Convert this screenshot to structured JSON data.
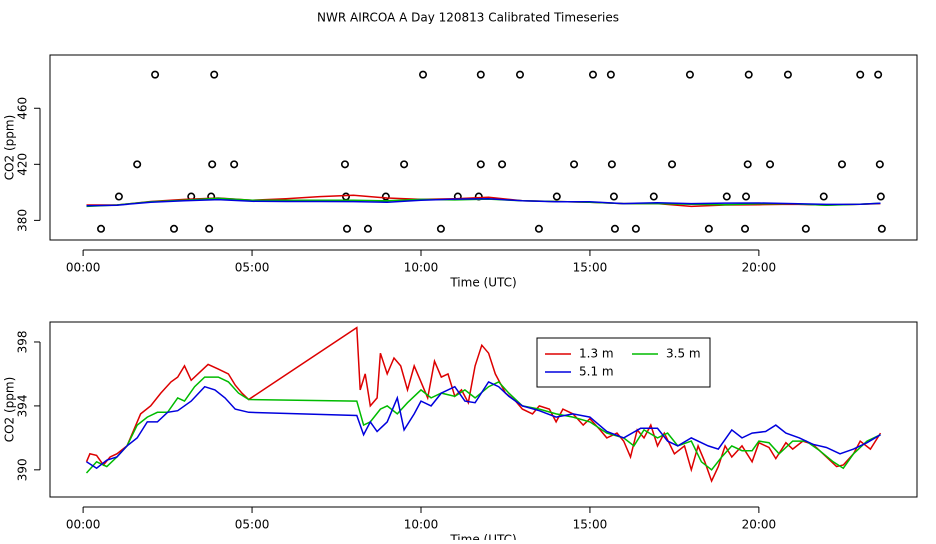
{
  "chart_data": [
    {
      "type": "line",
      "title": "NWR AIRCOA A  Day 120813  Calibrated Timeseries",
      "x_label": "Time (UTC)",
      "y_label": "CO2 (ppm)",
      "xlim": [
        -0.98,
        24.68
      ],
      "ylim": [
        366,
        498
      ],
      "xticks": [
        {
          "value": 0,
          "label": "00:00"
        },
        {
          "value": 5,
          "label": "05:00"
        },
        {
          "value": 10,
          "label": "10:00"
        },
        {
          "value": 15,
          "label": "15:00"
        },
        {
          "value": 20,
          "label": "20:00"
        }
      ],
      "yticks": [
        380,
        420,
        460
      ],
      "series": [
        {
          "mode": "points",
          "color": "#000000",
          "x": [
            2.13,
            3.88,
            10.06,
            11.77,
            12.93,
            15.09,
            15.62,
            17.96,
            19.7,
            20.86,
            23.0,
            23.53,
            1.6,
            3.82,
            4.47,
            7.75,
            9.5,
            11.77,
            12.4,
            14.53,
            15.65,
            17.43,
            19.67,
            20.33,
            22.46,
            23.58,
            1.06,
            3.2,
            3.79,
            7.78,
            8.96,
            11.09,
            11.71,
            14.02,
            15.71,
            16.89,
            19.05,
            19.62,
            21.92,
            23.61,
            0.53,
            2.69,
            3.73,
            7.81,
            8.43,
            10.59,
            13.49,
            15.74,
            16.36,
            18.52,
            19.59,
            21.39,
            23.64
          ],
          "values": [
            484,
            484,
            484,
            484,
            484,
            484,
            484,
            484,
            484,
            484,
            484,
            484,
            420,
            420,
            420,
            420,
            420,
            420,
            420,
            420,
            420,
            420,
            420,
            420,
            420,
            420,
            397,
            397,
            397,
            397,
            397,
            397,
            397,
            397,
            397,
            397,
            397,
            397,
            397,
            397,
            374,
            374,
            374,
            374,
            374,
            374,
            374,
            374,
            374,
            374,
            374,
            374,
            374
          ]
        },
        {
          "mode": "line",
          "color": "#dd0000",
          "x": [
            0.1,
            1,
            2,
            3,
            4,
            5,
            6,
            7,
            8,
            9,
            10,
            11,
            12,
            13,
            14,
            15,
            16,
            17,
            18,
            19,
            20,
            21,
            22,
            23,
            23.6
          ],
          "values": [
            391,
            391,
            393.5,
            395,
            396,
            394.4,
            395.5,
            397,
            398,
            396,
            395,
            395.5,
            396.5,
            394,
            393.5,
            393,
            392,
            392,
            390,
            391,
            391.2,
            391.5,
            391,
            391.5,
            392
          ]
        },
        {
          "mode": "line",
          "color": "#00bb00",
          "x": [
            0.1,
            1,
            2,
            3,
            4,
            5,
            6,
            7,
            8,
            9,
            10,
            11,
            12,
            13,
            14,
            15,
            16,
            17,
            18,
            19,
            20,
            21,
            22,
            23,
            23.6
          ],
          "values": [
            390,
            391,
            393.3,
            394.3,
            395.8,
            394.4,
            394.4,
            394.3,
            394.3,
            394,
            395,
            394.6,
            395.2,
            394,
            393.5,
            393,
            392,
            392,
            391.5,
            391.2,
            391.8,
            391.8,
            390.8,
            391.5,
            392.2
          ]
        },
        {
          "mode": "line",
          "color": "#0000dd",
          "x": [
            0.1,
            1,
            2,
            3,
            4,
            5,
            6,
            7,
            8,
            9,
            10,
            11,
            12,
            13,
            14,
            15,
            16,
            17,
            18,
            19,
            20,
            21,
            22,
            23,
            23.6
          ],
          "values": [
            390.5,
            390.8,
            393,
            394,
            394.8,
            393.6,
            393.5,
            393.5,
            393.4,
            393,
            394.3,
            395.2,
            395.5,
            394,
            393.3,
            393.3,
            392,
            392.6,
            392,
            392.3,
            392.4,
            392,
            391.4,
            391.5,
            392.2
          ]
        }
      ]
    },
    {
      "type": "line",
      "x_label": "Time (UTC)",
      "y_label": "CO2 (ppm)",
      "xlim": [
        -0.98,
        24.68
      ],
      "ylim": [
        388.3,
        399.25
      ],
      "xticks": [
        {
          "value": 0,
          "label": "00:00"
        },
        {
          "value": 5,
          "label": "05:00"
        },
        {
          "value": 10,
          "label": "10:00"
        },
        {
          "value": 15,
          "label": "15:00"
        },
        {
          "value": 20,
          "label": "20:00"
        }
      ],
      "yticks": [
        390,
        394,
        398
      ],
      "legend": "top-right",
      "series": [
        {
          "name": "1.3 m",
          "mode": "line",
          "color": "#dd0000",
          "x": [
            0.1,
            0.2,
            0.4,
            0.6,
            0.8,
            1.0,
            1.3,
            1.5,
            1.7,
            2.0,
            2.3,
            2.6,
            2.8,
            3.0,
            3.2,
            3.5,
            3.7,
            4.0,
            4.3,
            4.5,
            4.7,
            4.9,
            8.1,
            8.2,
            8.35,
            8.5,
            8.7,
            8.8,
            9.0,
            9.2,
            9.4,
            9.6,
            9.8,
            10.0,
            10.2,
            10.4,
            10.6,
            10.8,
            11.0,
            11.2,
            11.4,
            11.6,
            11.8,
            12.0,
            12.2,
            12.5,
            12.8,
            13.0,
            13.3,
            13.5,
            13.8,
            14.0,
            14.2,
            14.5,
            14.8,
            15.0,
            15.3,
            15.5,
            15.8,
            16.0,
            16.2,
            16.4,
            16.6,
            16.8,
            17.0,
            17.2,
            17.5,
            17.8,
            18.0,
            18.2,
            18.4,
            18.6,
            18.8,
            19.0,
            19.2,
            19.5,
            19.8,
            20.0,
            20.3,
            20.5,
            20.8,
            21.0,
            21.3,
            21.6,
            22.0,
            22.3,
            22.5,
            22.8,
            23.0,
            23.3,
            23.6
          ],
          "values": [
            390.5,
            391.0,
            390.9,
            390.3,
            390.8,
            391.0,
            391.5,
            392.5,
            393.5,
            394.0,
            394.8,
            395.5,
            395.8,
            396.5,
            395.6,
            396.2,
            396.6,
            396.3,
            396.0,
            395.3,
            394.8,
            394.4,
            398.9,
            395.0,
            396.0,
            394.0,
            394.5,
            397.3,
            396.0,
            397.0,
            396.5,
            395.0,
            396.5,
            395.5,
            394.5,
            396.8,
            395.8,
            396.0,
            394.6,
            395.0,
            394.2,
            396.5,
            397.8,
            397.3,
            396.0,
            394.8,
            394.3,
            393.8,
            393.5,
            394.0,
            393.8,
            393.0,
            393.8,
            393.5,
            392.8,
            393.2,
            392.5,
            392.0,
            392.3,
            391.8,
            390.8,
            392.5,
            392.0,
            392.8,
            391.5,
            392.3,
            391.0,
            391.5,
            390.0,
            391.5,
            390.5,
            389.3,
            390.2,
            391.5,
            390.8,
            391.5,
            390.5,
            391.7,
            391.4,
            390.7,
            391.7,
            391.3,
            391.8,
            391.6,
            390.8,
            390.2,
            390.3,
            391.0,
            391.8,
            391.3,
            392.3
          ]
        },
        {
          "name": "3.5 m",
          "mode": "line",
          "color": "#00bb00",
          "x": [
            0.1,
            0.4,
            0.7,
            1.0,
            1.3,
            1.6,
            1.9,
            2.2,
            2.5,
            2.8,
            3.0,
            3.3,
            3.6,
            4.0,
            4.3,
            4.6,
            4.9,
            8.1,
            8.3,
            8.5,
            8.8,
            9.0,
            9.3,
            9.6,
            10.0,
            10.3,
            10.6,
            11.0,
            11.3,
            11.6,
            12.0,
            12.3,
            12.6,
            13.0,
            13.5,
            14.0,
            14.5,
            15.0,
            15.5,
            16.0,
            16.3,
            16.6,
            17.0,
            17.3,
            17.6,
            18.0,
            18.3,
            18.6,
            18.9,
            19.2,
            19.5,
            19.8,
            20.0,
            20.3,
            20.6,
            21.0,
            21.4,
            21.8,
            22.2,
            22.5,
            22.8,
            23.2,
            23.6
          ],
          "values": [
            389.8,
            390.5,
            390.2,
            390.8,
            391.5,
            392.8,
            393.3,
            393.6,
            393.6,
            394.5,
            394.3,
            395.2,
            395.8,
            395.8,
            395.5,
            394.8,
            394.4,
            394.3,
            392.8,
            393.0,
            393.8,
            394.0,
            393.5,
            394.2,
            395.0,
            394.5,
            394.8,
            394.6,
            395.0,
            394.5,
            395.2,
            395.5,
            394.8,
            394.0,
            393.8,
            393.5,
            393.3,
            393.0,
            392.3,
            392.0,
            391.5,
            392.5,
            392.0,
            392.3,
            391.5,
            391.8,
            390.5,
            390.0,
            390.8,
            391.5,
            391.2,
            391.2,
            391.8,
            391.7,
            391.0,
            391.8,
            391.8,
            391.2,
            390.5,
            390.1,
            391.0,
            391.8,
            392.2
          ]
        },
        {
          "name": "5.1 m",
          "mode": "line",
          "color": "#0000dd",
          "x": [
            0.1,
            0.4,
            0.7,
            1.0,
            1.3,
            1.6,
            1.9,
            2.2,
            2.5,
            2.8,
            3.2,
            3.6,
            3.9,
            4.2,
            4.5,
            4.9,
            8.1,
            8.3,
            8.5,
            8.7,
            9.0,
            9.3,
            9.5,
            9.8,
            10.0,
            10.3,
            10.6,
            11.0,
            11.3,
            11.6,
            12.0,
            12.3,
            12.6,
            13.0,
            13.5,
            14.0,
            14.5,
            15.0,
            15.5,
            16.0,
            16.5,
            17.0,
            17.3,
            17.6,
            18.0,
            18.5,
            18.8,
            19.2,
            19.5,
            19.8,
            20.2,
            20.5,
            20.8,
            21.2,
            21.6,
            22.0,
            22.4,
            22.8,
            23.2,
            23.6
          ],
          "values": [
            390.5,
            390.1,
            390.6,
            390.8,
            391.5,
            392.0,
            393.0,
            393.0,
            393.6,
            393.7,
            394.3,
            395.2,
            395.0,
            394.5,
            393.8,
            393.6,
            393.4,
            392.2,
            393.0,
            392.4,
            393.0,
            394.5,
            392.5,
            393.5,
            394.3,
            394.0,
            394.8,
            395.2,
            394.3,
            394.2,
            395.5,
            395.2,
            394.6,
            394.0,
            393.7,
            393.3,
            393.5,
            393.3,
            392.4,
            392.0,
            392.6,
            392.6,
            391.8,
            391.5,
            392.0,
            391.5,
            391.3,
            392.5,
            392.0,
            392.3,
            392.4,
            392.8,
            392.3,
            392.0,
            391.6,
            391.4,
            391.0,
            391.3,
            391.7,
            392.2
          ]
        }
      ]
    }
  ]
}
